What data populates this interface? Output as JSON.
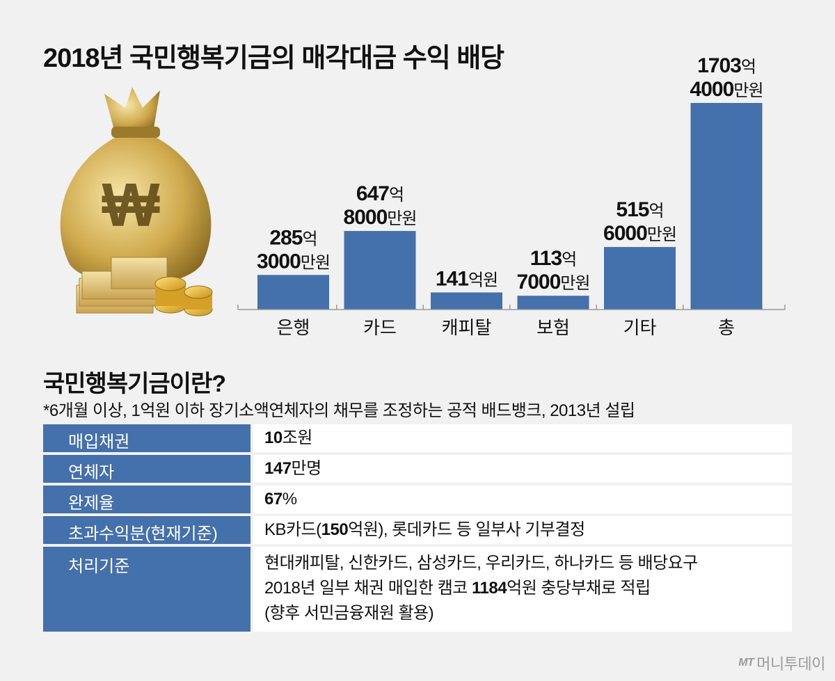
{
  "title": "2018년 국민행복기금의 매각대금 수익 배당",
  "currency_symbol": "₩",
  "chart_data": {
    "type": "bar",
    "categories": [
      "은행",
      "카드",
      "캐피탈",
      "보험",
      "기타",
      "총"
    ],
    "values": [
      285.3,
      647.8,
      141,
      113.7,
      515.6,
      1703.4
    ],
    "unit": "억원",
    "labels": [
      {
        "line1": "285",
        "line1_unit": "억",
        "line2": "3000",
        "line2_unit": "만원"
      },
      {
        "line1": "647",
        "line1_unit": "억",
        "line2": "8000",
        "line2_unit": "만원"
      },
      {
        "line1": "141",
        "line1_unit": "억원",
        "line2": "",
        "line2_unit": ""
      },
      {
        "line1": "113",
        "line1_unit": "억",
        "line2": "7000",
        "line2_unit": "만원"
      },
      {
        "line1": "515",
        "line1_unit": "억",
        "line2": "6000",
        "line2_unit": "만원"
      },
      {
        "line1": "1703",
        "line1_unit": "억",
        "line2": "4000",
        "line2_unit": "만원"
      }
    ],
    "ylim": [
      0,
      1703.4
    ],
    "bar_color": "#4470ab",
    "grid": false
  },
  "section": {
    "title": "국민행복기금이란?",
    "note": "*6개월 이상, 1억원 이하 장기소액연체자의 채무를 조정하는 공적 배드뱅크, 2013년 설립"
  },
  "table": [
    {
      "label": "매입채권",
      "lines": [
        [
          {
            "text": "10",
            "bold": true
          },
          {
            "text": "조원",
            "bold": false
          }
        ]
      ]
    },
    {
      "label": "연체자",
      "lines": [
        [
          {
            "text": "147",
            "bold": true
          },
          {
            "text": "만명",
            "bold": false
          }
        ]
      ]
    },
    {
      "label": "완제율",
      "lines": [
        [
          {
            "text": "67",
            "bold": true
          },
          {
            "text": "%",
            "bold": false
          }
        ]
      ]
    },
    {
      "label": "초과수익분(현재기준)",
      "lines": [
        [
          {
            "text": "KB카드(",
            "bold": false
          },
          {
            "text": "150",
            "bold": true
          },
          {
            "text": "억원), 롯데카드 등 일부사 기부결정",
            "bold": false
          }
        ]
      ]
    },
    {
      "label": "처리기준",
      "lines": [
        [
          {
            "text": "현대캐피탈, 신한카드, 삼성카드, 우리카드, 하나카드 등 배당요구",
            "bold": false
          }
        ],
        [
          {
            "text": "2018년 일부 채권 매입한 캠코 ",
            "bold": false
          },
          {
            "text": "1184",
            "bold": true
          },
          {
            "text": "억원 충당부채로 적립",
            "bold": false
          }
        ],
        [
          {
            "text": "(향후 서민금융재원 활용)",
            "bold": false
          }
        ]
      ]
    }
  ],
  "brand": {
    "mark": "MT",
    "name": "머니투데이"
  }
}
